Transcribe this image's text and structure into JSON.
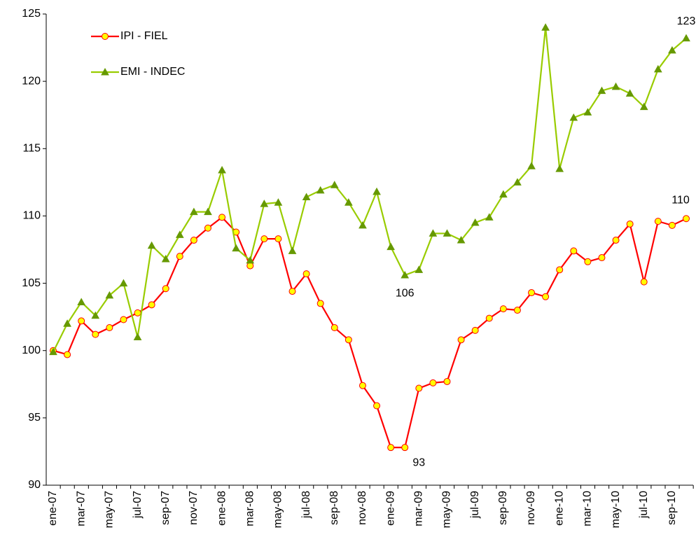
{
  "chart_data": {
    "type": "line",
    "categories": [
      "ene-07",
      null,
      "mar-07",
      null,
      "may-07",
      null,
      "jul-07",
      null,
      "sep-07",
      null,
      "nov-07",
      null,
      "ene-08",
      null,
      "mar-08",
      null,
      "may-08",
      null,
      "jul-08",
      null,
      "sep-08",
      null,
      "nov-08",
      null,
      "ene-09",
      null,
      "mar-09",
      null,
      "may-09",
      null,
      "jul-09",
      null,
      "sep-09",
      null,
      "nov-09",
      null,
      "ene-10",
      null,
      "mar-10",
      null,
      "may-10",
      null,
      "jul-10",
      null,
      "sep-10",
      null
    ],
    "series": [
      {
        "name": "IPI - FIEL",
        "color": "#ff0000",
        "marker_color": "#ffff00",
        "marker": "circle",
        "values": [
          100.0,
          99.7,
          102.2,
          101.2,
          101.7,
          102.3,
          102.8,
          103.4,
          104.6,
          107.0,
          108.2,
          109.1,
          109.9,
          108.8,
          106.3,
          108.3,
          108.3,
          104.4,
          105.7,
          103.5,
          101.7,
          100.8,
          97.4,
          95.9,
          92.8,
          92.8,
          97.2,
          97.6,
          97.7,
          100.8,
          101.5,
          102.4,
          103.1,
          103.0,
          104.3,
          104.0,
          106.0,
          107.4,
          106.6,
          106.9,
          108.2,
          109.4,
          105.1,
          109.6,
          109.3,
          109.8
        ]
      },
      {
        "name": "EMI - INDEC",
        "color": "#99cc00",
        "marker_color": "#669900",
        "marker": "triangle",
        "values": [
          99.9,
          102.0,
          103.6,
          102.6,
          104.1,
          105.0,
          101.0,
          107.8,
          106.8,
          108.6,
          110.3,
          110.3,
          113.4,
          107.6,
          106.7,
          110.9,
          111.0,
          107.4,
          111.4,
          111.9,
          112.3,
          111.0,
          109.3,
          111.8,
          107.7,
          105.6,
          106.0,
          108.7,
          108.7,
          108.2,
          109.5,
          109.9,
          111.6,
          112.5,
          113.7,
          124.0,
          113.5,
          117.3,
          117.7,
          119.3,
          119.6,
          119.1,
          118.1,
          120.9,
          122.3,
          123.2
        ]
      }
    ],
    "annotations": [
      "123",
      "110",
      "106",
      "93"
    ],
    "ylim": [
      90,
      125
    ],
    "yticks": [
      90,
      95,
      100,
      105,
      110,
      115,
      120,
      125
    ],
    "grid": false
  }
}
